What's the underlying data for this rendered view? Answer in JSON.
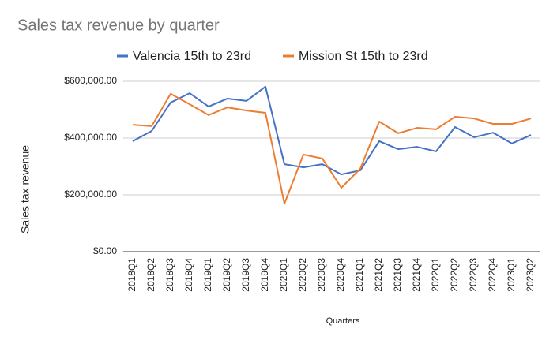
{
  "chart_data": {
    "type": "line",
    "title": "Sales tax revenue by quarter",
    "x_label": "Quarters",
    "y_label": "Sales tax revenue",
    "categories": [
      "2018Q1",
      "2018Q2",
      "2018Q3",
      "2018Q4",
      "2019Q1",
      "2019Q2",
      "2019Q3",
      "2019Q4",
      "2020Q1",
      "2020Q2",
      "2020Q3",
      "2020Q4",
      "2021Q1",
      "2021Q2",
      "2021Q3",
      "2021Q4",
      "2022Q1",
      "2022Q2",
      "2022Q3",
      "2022Q4",
      "2023Q1",
      "2023Q2"
    ],
    "series": [
      {
        "name": "Valencia 15th to 23rd",
        "color": "#4472c4",
        "values": [
          389000,
          425000,
          525000,
          558000,
          511000,
          539000,
          531000,
          581000,
          308000,
          297000,
          308000,
          272000,
          286000,
          389000,
          361000,
          369000,
          353000,
          439000,
          403000,
          419000,
          381000,
          411000
        ]
      },
      {
        "name": "Mission St 15th to 23rd",
        "color": "#ed7d31",
        "values": [
          447000,
          442000,
          556000,
          519000,
          481000,
          508000,
          497000,
          489000,
          169000,
          342000,
          328000,
          225000,
          292000,
          458000,
          417000,
          436000,
          431000,
          475000,
          469000,
          450000,
          450000,
          469000
        ]
      }
    ],
    "ylim": [
      0,
      600000
    ],
    "yticks": [
      {
        "value": 0,
        "label": "$0.00"
      },
      {
        "value": 200000,
        "label": "$200,000.00"
      },
      {
        "value": 400000,
        "label": "$400,000.00"
      },
      {
        "value": 600000,
        "label": "$600,000.00"
      }
    ],
    "grid": true,
    "legend": "top"
  }
}
